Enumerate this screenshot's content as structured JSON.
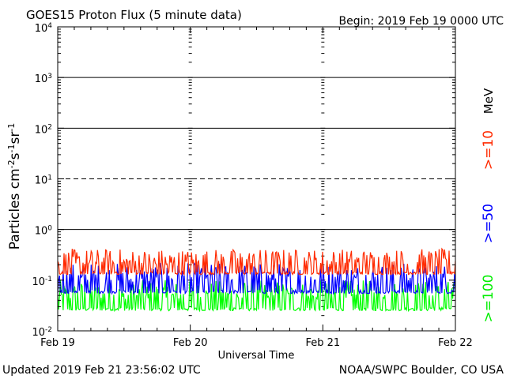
{
  "header": {
    "title": "GOES15 Proton Flux (5 minute data)",
    "begin": "Begin: 2019 Feb 19 0000 UTC"
  },
  "footer": {
    "updated": "Updated 2019 Feb 21 23:56:02 UTC",
    "credit": "NOAA/SWPC Boulder, CO USA"
  },
  "chart_data": {
    "type": "line",
    "title": "GOES15 Proton Flux (5 minute data)",
    "xlabel": "Universal Time",
    "ylabel": "Particles cm-2s-1sr-1",
    "yscale": "log",
    "ylim": [
      0.01,
      10000
    ],
    "xlim": [
      "Feb 19",
      "Feb 22"
    ],
    "x_ticks": [
      "Feb 19",
      "Feb 20",
      "Feb 21",
      "Feb 22"
    ],
    "y_ticks": [
      {
        "base": "10",
        "exp": "-2",
        "value": 0.01
      },
      {
        "base": "10",
        "exp": "-1",
        "value": 0.1
      },
      {
        "base": "10",
        "exp": "0",
        "value": 1
      },
      {
        "base": "10",
        "exp": "1",
        "value": 10
      },
      {
        "base": "10",
        "exp": "2",
        "value": 100
      },
      {
        "base": "10",
        "exp": "3",
        "value": 1000
      },
      {
        "base": "10",
        "exp": "4",
        "value": 10000
      }
    ],
    "threshold_lines": [
      {
        "value": 1,
        "style": "solid"
      },
      {
        "value": 10,
        "style": "dashed"
      },
      {
        "value": 100,
        "style": "solid"
      },
      {
        "value": 1000,
        "style": "solid"
      }
    ],
    "unit_label": "MeV",
    "series": [
      {
        "name": ">=10",
        "color": "#ff2a00",
        "min": 0.13,
        "max": 0.42
      },
      {
        "name": ">=50",
        "color": "#0000ff",
        "min": 0.055,
        "max": 0.22
      },
      {
        "name": ">=100",
        "color": "#00ff00",
        "min": 0.025,
        "max": 0.1
      }
    ],
    "grid": false
  }
}
